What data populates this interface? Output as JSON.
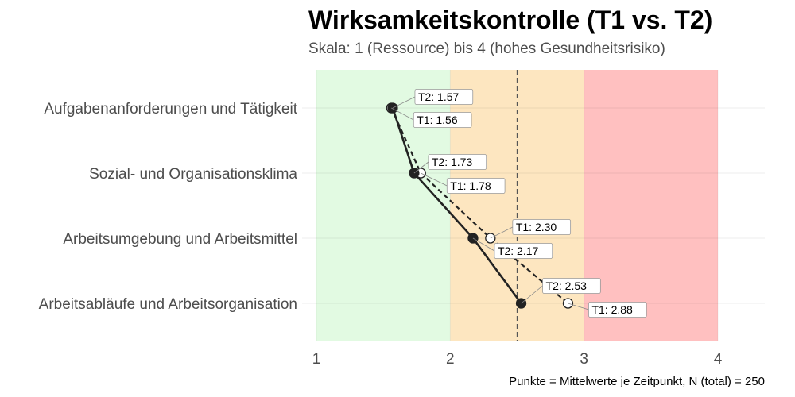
{
  "chart_data": {
    "type": "scatter",
    "title": "Wirksamkeitskontrolle (T1 vs. T2)",
    "subtitle": "Skala: 1 (Ressource) bis 4 (hohes Gesundheitsrisiko)",
    "caption": "Punkte = Mittelwerte je Zeitpunkt, N (total) = 250",
    "categories": [
      "Aufgabenanforderungen und Tätigkeit",
      "Sozial- und Organisationsklima",
      "Arbeitsumgebung und Arbeitsmittel",
      "Arbeitsabläufe und Arbeitsorganisation"
    ],
    "xlim": [
      1,
      4.35
    ],
    "xticks": [
      "1",
      "2",
      "3",
      "4"
    ],
    "reference_line": 2.5,
    "zones": [
      {
        "from": 1,
        "to": 2,
        "color": "#e2fae2"
      },
      {
        "from": 2,
        "to": 3,
        "color": "#fde6c0"
      },
      {
        "from": 3,
        "to": 4,
        "color": "#ffc0c0"
      }
    ],
    "series": [
      {
        "name": "T1",
        "line": "dashed",
        "marker": "open",
        "color": "#222222",
        "values": [
          1.56,
          1.78,
          2.3,
          2.88
        ],
        "labels": [
          "T1: 1.56",
          "T1: 1.78",
          "T1: 2.30",
          "T1: 2.88"
        ]
      },
      {
        "name": "T2",
        "line": "solid",
        "marker": "filled",
        "color": "#222222",
        "values": [
          1.57,
          1.73,
          2.17,
          2.53
        ],
        "labels": [
          "T2: 1.57",
          "T2: 1.73",
          "T2: 2.17",
          "T2: 2.53"
        ]
      }
    ],
    "legend": "none",
    "grid": true
  }
}
